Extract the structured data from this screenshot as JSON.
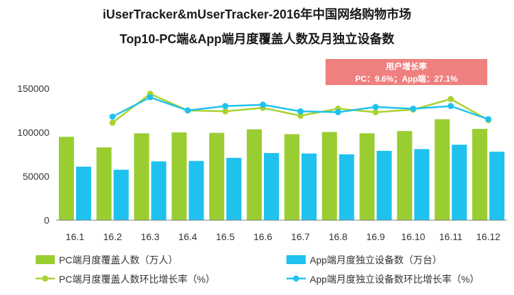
{
  "chart_data": {
    "type": "bar",
    "title_line1": "iUserTracker&mUserTracker-2016年中国网络购物市场",
    "title_line2": "Top10-PC端&App端月度覆盖人数及月独立设备数",
    "categories": [
      "16.1",
      "16.2",
      "16.3",
      "16.4",
      "16.5",
      "16.6",
      "16.7",
      "16.8",
      "16.9",
      "16.10",
      "16.11",
      "16.12"
    ],
    "ylim": [
      0,
      150000
    ],
    "yticks": [
      "0",
      "50000",
      "100000",
      "150000"
    ],
    "bar_series": [
      {
        "name": "PC端月度覆盖人数（万人）",
        "color": "#9ACD32",
        "values": [
          95000,
          83000,
          99000,
          100000,
          99500,
          103500,
          98000,
          100500,
          99000,
          101500,
          115000,
          104000
        ]
      },
      {
        "name": "App端月度独立设备数（万台）",
        "color": "#1FC1EE",
        "values": [
          61000,
          57500,
          67000,
          67500,
          71000,
          76500,
          76000,
          75000,
          79000,
          81000,
          86000,
          78000
        ]
      }
    ],
    "line_series": [
      {
        "name": "PC端月度覆盖人数环比增长率（%）",
        "color": "#A9D22E",
        "values": [
          null,
          111000,
          144000,
          125000,
          124000,
          128000,
          119000,
          127000,
          123000,
          126000,
          138000,
          114000
        ]
      },
      {
        "name": "App端月度独立设备数环比增长率（%）",
        "color": "#1FC1EE",
        "values": [
          null,
          118000,
          140000,
          125000,
          130000,
          131500,
          124000,
          123000,
          129000,
          127000,
          130000,
          115000
        ]
      }
    ],
    "annotation": {
      "title": "用户增长率",
      "text": "PC：9.6%；App端：27.1%",
      "bg_color": "#F08080"
    },
    "grid": false,
    "legend": "bottom"
  }
}
